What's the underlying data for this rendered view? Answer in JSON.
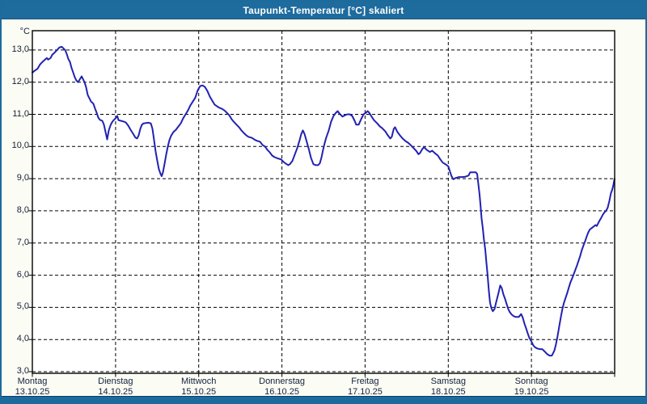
{
  "window": {
    "title": "Taupunkt-Temperatur [°C] skaliert"
  },
  "colors": {
    "titlebar_bg": "#1e6b9e",
    "window_border": "#1d6a9c",
    "content_bg": "#fbfcf3",
    "plot_bg": "#ffffff",
    "plot_border": "#000000",
    "grid": "#000000",
    "line": "#2222b2",
    "label_text": "#14213d",
    "title_text": "#ffffff"
  },
  "chart_data": {
    "type": "line",
    "title": "Taupunkt-Temperatur [°C] skaliert",
    "unit": "°C",
    "grid": "dashed",
    "legend": "none",
    "ylim": [
      2.95,
      13.6
    ],
    "xlim_days": [
      0,
      7
    ],
    "y_ticks": [
      {
        "label": "13,0",
        "value": 13
      },
      {
        "label": "12,0",
        "value": 12
      },
      {
        "label": "11,0",
        "value": 11
      },
      {
        "label": "10,0",
        "value": 10
      },
      {
        "label": "9,0",
        "value": 9
      },
      {
        "label": "8,0",
        "value": 8
      },
      {
        "label": "7,0",
        "value": 7
      },
      {
        "label": "6,0",
        "value": 6
      },
      {
        "label": "5,0",
        "value": 5
      },
      {
        "label": "4,0",
        "value": 4
      },
      {
        "label": "3,0",
        "value": 3
      }
    ],
    "days": [
      {
        "label": "Montag",
        "date": "13.10.25"
      },
      {
        "label": "Dienstag",
        "date": "14.10.25"
      },
      {
        "label": "Mittwoch",
        "date": "15.10.25"
      },
      {
        "label": "Donnerstag",
        "date": "16.10.25"
      },
      {
        "label": "Freitag",
        "date": "17.10.25"
      },
      {
        "label": "Samstag",
        "date": "18.10.25"
      },
      {
        "label": "Sonntag",
        "date": "19.10.25"
      }
    ],
    "series": [
      {
        "name": "Taupunkt",
        "points": [
          [
            0.0,
            12.3
          ],
          [
            0.024,
            12.35
          ],
          [
            0.063,
            12.42
          ],
          [
            0.092,
            12.55
          ],
          [
            0.122,
            12.63
          ],
          [
            0.16,
            12.72
          ],
          [
            0.175,
            12.75
          ],
          [
            0.19,
            12.7
          ],
          [
            0.219,
            12.75
          ],
          [
            0.238,
            12.85
          ],
          [
            0.267,
            12.92
          ],
          [
            0.297,
            13.0
          ],
          [
            0.326,
            13.08
          ],
          [
            0.355,
            13.1
          ],
          [
            0.374,
            13.05
          ],
          [
            0.394,
            13.0
          ],
          [
            0.413,
            12.88
          ],
          [
            0.433,
            12.72
          ],
          [
            0.452,
            12.63
          ],
          [
            0.471,
            12.45
          ],
          [
            0.491,
            12.3
          ],
          [
            0.51,
            12.15
          ],
          [
            0.53,
            12.05
          ],
          [
            0.549,
            12.0
          ],
          [
            0.569,
            12.08
          ],
          [
            0.593,
            12.18
          ],
          [
            0.608,
            12.1
          ],
          [
            0.627,
            12.0
          ],
          [
            0.646,
            11.85
          ],
          [
            0.666,
            11.6
          ],
          [
            0.685,
            11.5
          ],
          [
            0.705,
            11.4
          ],
          [
            0.734,
            11.33
          ],
          [
            0.753,
            11.18
          ],
          [
            0.773,
            11.05
          ],
          [
            0.792,
            10.9
          ],
          [
            0.812,
            10.83
          ],
          [
            0.841,
            10.8
          ],
          [
            0.86,
            10.68
          ],
          [
            0.88,
            10.45
          ],
          [
            0.899,
            10.22
          ],
          [
            0.919,
            10.5
          ],
          [
            0.938,
            10.65
          ],
          [
            0.957,
            10.75
          ],
          [
            0.977,
            10.82
          ],
          [
            1.001,
            10.88
          ],
          [
            1.021,
            10.95
          ],
          [
            1.035,
            10.82
          ],
          [
            1.064,
            10.8
          ],
          [
            1.094,
            10.78
          ],
          [
            1.123,
            10.75
          ],
          [
            1.152,
            10.65
          ],
          [
            1.181,
            10.52
          ],
          [
            1.21,
            10.4
          ],
          [
            1.239,
            10.28
          ],
          [
            1.259,
            10.25
          ],
          [
            1.278,
            10.35
          ],
          [
            1.298,
            10.55
          ],
          [
            1.317,
            10.68
          ],
          [
            1.337,
            10.72
          ],
          [
            1.366,
            10.73
          ],
          [
            1.395,
            10.74
          ],
          [
            1.424,
            10.72
          ],
          [
            1.444,
            10.55
          ],
          [
            1.463,
            10.2
          ],
          [
            1.482,
            9.85
          ],
          [
            1.502,
            9.55
          ],
          [
            1.521,
            9.3
          ],
          [
            1.541,
            9.15
          ],
          [
            1.555,
            9.08
          ],
          [
            1.57,
            9.2
          ],
          [
            1.589,
            9.45
          ],
          [
            1.609,
            9.75
          ],
          [
            1.628,
            10.0
          ],
          [
            1.648,
            10.2
          ],
          [
            1.667,
            10.33
          ],
          [
            1.696,
            10.45
          ],
          [
            1.726,
            10.52
          ],
          [
            1.755,
            10.62
          ],
          [
            1.784,
            10.72
          ],
          [
            1.813,
            10.88
          ],
          [
            1.842,
            11.0
          ],
          [
            1.871,
            11.12
          ],
          [
            1.9,
            11.28
          ],
          [
            1.93,
            11.4
          ],
          [
            1.959,
            11.52
          ],
          [
            1.988,
            11.75
          ],
          [
            2.017,
            11.88
          ],
          [
            2.047,
            11.9
          ],
          [
            2.076,
            11.85
          ],
          [
            2.105,
            11.72
          ],
          [
            2.134,
            11.55
          ],
          [
            2.163,
            11.42
          ],
          [
            2.192,
            11.3
          ],
          [
            2.221,
            11.25
          ],
          [
            2.251,
            11.2
          ],
          [
            2.28,
            11.17
          ],
          [
            2.309,
            11.12
          ],
          [
            2.338,
            11.05
          ],
          [
            2.367,
            10.97
          ],
          [
            2.396,
            10.85
          ],
          [
            2.425,
            10.76
          ],
          [
            2.455,
            10.68
          ],
          [
            2.484,
            10.6
          ],
          [
            2.513,
            10.5
          ],
          [
            2.542,
            10.42
          ],
          [
            2.571,
            10.35
          ],
          [
            2.6,
            10.3
          ],
          [
            2.639,
            10.27
          ],
          [
            2.668,
            10.22
          ],
          [
            2.698,
            10.18
          ],
          [
            2.737,
            10.15
          ],
          [
            2.766,
            10.05
          ],
          [
            2.795,
            10.0
          ],
          [
            2.824,
            9.9
          ],
          [
            2.853,
            9.82
          ],
          [
            2.883,
            9.72
          ],
          [
            2.912,
            9.67
          ],
          [
            2.951,
            9.63
          ],
          [
            2.99,
            9.6
          ],
          [
            3.028,
            9.5
          ],
          [
            3.058,
            9.45
          ],
          [
            3.077,
            9.42
          ],
          [
            3.096,
            9.45
          ],
          [
            3.126,
            9.55
          ],
          [
            3.155,
            9.75
          ],
          [
            3.184,
            9.95
          ],
          [
            3.213,
            10.2
          ],
          [
            3.232,
            10.38
          ],
          [
            3.252,
            10.5
          ],
          [
            3.271,
            10.4
          ],
          [
            3.291,
            10.22
          ],
          [
            3.32,
            9.95
          ],
          [
            3.349,
            9.65
          ],
          [
            3.378,
            9.45
          ],
          [
            3.407,
            9.42
          ],
          [
            3.436,
            9.42
          ],
          [
            3.456,
            9.48
          ],
          [
            3.475,
            9.65
          ],
          [
            3.495,
            9.9
          ],
          [
            3.514,
            10.1
          ],
          [
            3.533,
            10.28
          ],
          [
            3.563,
            10.5
          ],
          [
            3.592,
            10.78
          ],
          [
            3.621,
            10.95
          ],
          [
            3.65,
            11.05
          ],
          [
            3.67,
            11.1
          ],
          [
            3.699,
            11.0
          ],
          [
            3.728,
            10.93
          ],
          [
            3.757,
            10.97
          ],
          [
            3.786,
            11.0
          ],
          [
            3.816,
            11.0
          ],
          [
            3.845,
            10.95
          ],
          [
            3.874,
            10.8
          ],
          [
            3.893,
            10.68
          ],
          [
            3.923,
            10.68
          ],
          [
            3.952,
            10.85
          ],
          [
            3.981,
            11.0
          ],
          [
            4.01,
            11.05
          ],
          [
            4.03,
            11.1
          ],
          [
            4.049,
            11.05
          ],
          [
            4.078,
            10.93
          ],
          [
            4.107,
            10.82
          ],
          [
            4.146,
            10.72
          ],
          [
            4.175,
            10.63
          ],
          [
            4.205,
            10.57
          ],
          [
            4.243,
            10.47
          ],
          [
            4.273,
            10.35
          ],
          [
            4.302,
            10.25
          ],
          [
            4.321,
            10.3
          ],
          [
            4.345,
            10.55
          ],
          [
            4.36,
            10.6
          ],
          [
            4.389,
            10.45
          ],
          [
            4.418,
            10.35
          ],
          [
            4.447,
            10.26
          ],
          [
            4.486,
            10.17
          ],
          [
            4.515,
            10.12
          ],
          [
            4.545,
            10.05
          ],
          [
            4.583,
            9.95
          ],
          [
            4.613,
            9.87
          ],
          [
            4.642,
            9.76
          ],
          [
            4.661,
            9.8
          ],
          [
            4.69,
            9.93
          ],
          [
            4.71,
            9.98
          ],
          [
            4.739,
            9.9
          ],
          [
            4.778,
            9.83
          ],
          [
            4.807,
            9.87
          ],
          [
            4.836,
            9.8
          ],
          [
            4.875,
            9.72
          ],
          [
            4.904,
            9.6
          ],
          [
            4.933,
            9.5
          ],
          [
            4.972,
            9.44
          ],
          [
            5.001,
            9.38
          ],
          [
            5.021,
            9.22
          ],
          [
            5.04,
            9.07
          ],
          [
            5.06,
            8.98
          ],
          [
            5.089,
            9.02
          ],
          [
            5.128,
            9.05
          ],
          [
            5.167,
            9.05
          ],
          [
            5.205,
            9.06
          ],
          [
            5.244,
            9.1
          ],
          [
            5.264,
            9.2
          ],
          [
            5.303,
            9.2
          ],
          [
            5.332,
            9.2
          ],
          [
            5.347,
            9.15
          ],
          [
            5.361,
            8.85
          ],
          [
            5.376,
            8.5
          ],
          [
            5.39,
            8.1
          ],
          [
            5.4,
            7.78
          ],
          [
            5.415,
            7.45
          ],
          [
            5.429,
            7.1
          ],
          [
            5.444,
            6.8
          ],
          [
            5.458,
            6.4
          ],
          [
            5.473,
            6.0
          ],
          [
            5.488,
            5.5
          ],
          [
            5.502,
            5.15
          ],
          [
            5.517,
            4.98
          ],
          [
            5.536,
            4.88
          ],
          [
            5.556,
            4.95
          ],
          [
            5.575,
            5.15
          ],
          [
            5.604,
            5.45
          ],
          [
            5.624,
            5.68
          ],
          [
            5.643,
            5.6
          ],
          [
            5.663,
            5.4
          ],
          [
            5.682,
            5.27
          ],
          [
            5.702,
            5.1
          ],
          [
            5.721,
            4.95
          ],
          [
            5.74,
            4.85
          ],
          [
            5.76,
            4.78
          ],
          [
            5.789,
            4.72
          ],
          [
            5.818,
            4.7
          ],
          [
            5.847,
            4.7
          ],
          [
            5.876,
            4.79
          ],
          [
            5.896,
            4.68
          ],
          [
            5.915,
            4.5
          ],
          [
            5.935,
            4.35
          ],
          [
            5.954,
            4.2
          ],
          [
            5.974,
            4.05
          ],
          [
            5.998,
            3.95
          ],
          [
            6.022,
            3.82
          ],
          [
            6.042,
            3.76
          ],
          [
            6.071,
            3.72
          ],
          [
            6.1,
            3.7
          ],
          [
            6.129,
            3.7
          ],
          [
            6.158,
            3.63
          ],
          [
            6.187,
            3.55
          ],
          [
            6.217,
            3.5
          ],
          [
            6.246,
            3.5
          ],
          [
            6.275,
            3.65
          ],
          [
            6.294,
            3.85
          ],
          [
            6.314,
            4.1
          ],
          [
            6.333,
            4.4
          ],
          [
            6.353,
            4.7
          ],
          [
            6.372,
            4.95
          ],
          [
            6.391,
            5.15
          ],
          [
            6.411,
            5.3
          ],
          [
            6.43,
            5.45
          ],
          [
            6.45,
            5.62
          ],
          [
            6.469,
            5.78
          ],
          [
            6.489,
            5.9
          ],
          [
            6.508,
            6.03
          ],
          [
            6.527,
            6.16
          ],
          [
            6.547,
            6.3
          ],
          [
            6.566,
            6.45
          ],
          [
            6.586,
            6.6
          ],
          [
            6.605,
            6.78
          ],
          [
            6.625,
            6.92
          ],
          [
            6.644,
            7.05
          ],
          [
            6.664,
            7.2
          ],
          [
            6.683,
            7.33
          ],
          [
            6.702,
            7.42
          ],
          [
            6.722,
            7.46
          ],
          [
            6.751,
            7.52
          ],
          [
            6.77,
            7.56
          ],
          [
            6.785,
            7.53
          ],
          [
            6.799,
            7.6
          ],
          [
            6.819,
            7.7
          ],
          [
            6.838,
            7.78
          ],
          [
            6.858,
            7.88
          ],
          [
            6.877,
            7.95
          ],
          [
            6.897,
            8.0
          ],
          [
            6.916,
            8.1
          ],
          [
            6.936,
            8.3
          ],
          [
            6.955,
            8.55
          ],
          [
            6.97,
            8.65
          ],
          [
            6.984,
            8.8
          ],
          [
            6.999,
            9.0
          ]
        ]
      }
    ]
  }
}
